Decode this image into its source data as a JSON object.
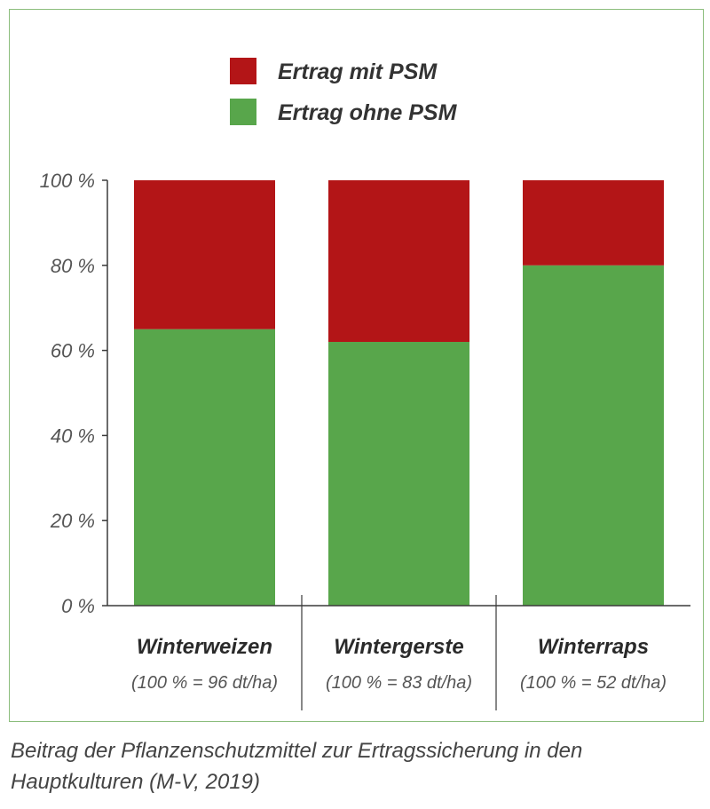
{
  "chart_data": {
    "type": "bar",
    "stacked": true,
    "categories": [
      "Winterweizen",
      "Wintergerste",
      "Winterraps"
    ],
    "category_subtitles": [
      "(100 % = 96 dt/ha)",
      "(100 % = 83 dt/ha)",
      "(100 % = 52 dt/ha)"
    ],
    "series": [
      {
        "name": "Ertrag ohne PSM",
        "color": "#58a64b",
        "values": [
          65,
          62,
          80
        ]
      },
      {
        "name": "Ertrag mit PSM",
        "color": "#b31517",
        "values": [
          35,
          38,
          20
        ]
      }
    ],
    "legend": {
      "position": "top",
      "order": [
        "Ertrag mit PSM",
        "Ertrag ohne PSM"
      ]
    },
    "yticks": [
      "0 %",
      "20 %",
      "40 %",
      "60 %",
      "80 %",
      "100 %"
    ],
    "ylim": [
      0,
      100
    ],
    "grid": false
  },
  "caption": "Beitrag der Pflanzenschutzmittel zur Ertragssicherung in den Hauptkulturen (M-V, 2019)"
}
